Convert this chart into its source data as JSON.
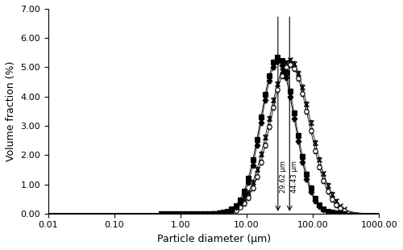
{
  "title": "",
  "xlabel": "Particle diameter (μm)",
  "ylabel": "Volume fraction (%)",
  "xlim": [
    0.01,
    1000.0
  ],
  "ylim": [
    0.0,
    7.0
  ],
  "yticks": [
    0.0,
    1.0,
    2.0,
    3.0,
    4.0,
    5.0,
    6.0,
    7.0
  ],
  "ytick_labels": [
    "0.00",
    "1.00",
    "2.00",
    "3.00",
    "4.00",
    "5.00",
    "6.00",
    "7.00"
  ],
  "xtick_labels": [
    "0.01",
    "0.10",
    "1.00",
    "10.00",
    "100.00",
    "1000.00"
  ],
  "xtick_values": [
    0.01,
    0.1,
    1.0,
    10.0,
    100.0,
    1000.0
  ],
  "vline1_x": 29.62,
  "vline2_x": 44.43,
  "vline1_label": "29.62 μm",
  "vline2_label": "44.43 μm",
  "mu_A": 3.794,
  "sigma_A": 0.72,
  "scale_A": 5.25,
  "mu_B": 3.794,
  "sigma_B": 0.68,
  "scale_B": 5.1,
  "mu_C": 3.389,
  "sigma_C": 0.6,
  "scale_C": 5.35,
  "mu_D": 3.389,
  "sigma_D": 0.58,
  "scale_D": 5.2
}
